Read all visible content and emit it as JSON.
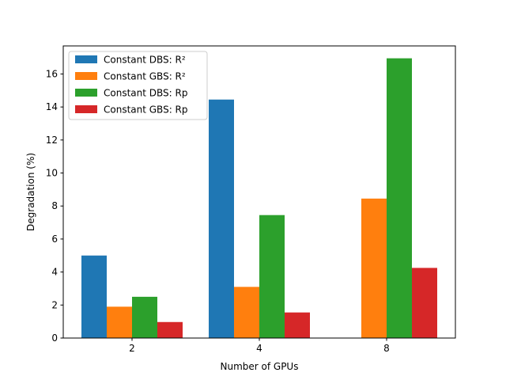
{
  "chart_data": {
    "type": "bar",
    "title": "",
    "xlabel": "Number of GPUs",
    "ylabel": "Degradation (%)",
    "categories": [
      "2",
      "4",
      "8"
    ],
    "ylim": [
      0,
      17.7
    ],
    "yticks": [
      0,
      2,
      4,
      6,
      8,
      10,
      12,
      14,
      16
    ],
    "grid": false,
    "legend_position": "top-left",
    "series": [
      {
        "name": "Constant DBS: R²",
        "color": "#1f77b4",
        "values": [
          5.0,
          14.45,
          null
        ]
      },
      {
        "name": "Constant GBS: R²",
        "color": "#ff7f0e",
        "values": [
          1.9,
          3.1,
          8.45
        ]
      },
      {
        "name": "Constant DBS: Rp",
        "color": "#2ca02c",
        "values": [
          2.5,
          7.45,
          16.95
        ]
      },
      {
        "name": "Constant GBS: Rp",
        "color": "#d62728",
        "values": [
          0.97,
          1.55,
          4.25
        ]
      }
    ]
  }
}
